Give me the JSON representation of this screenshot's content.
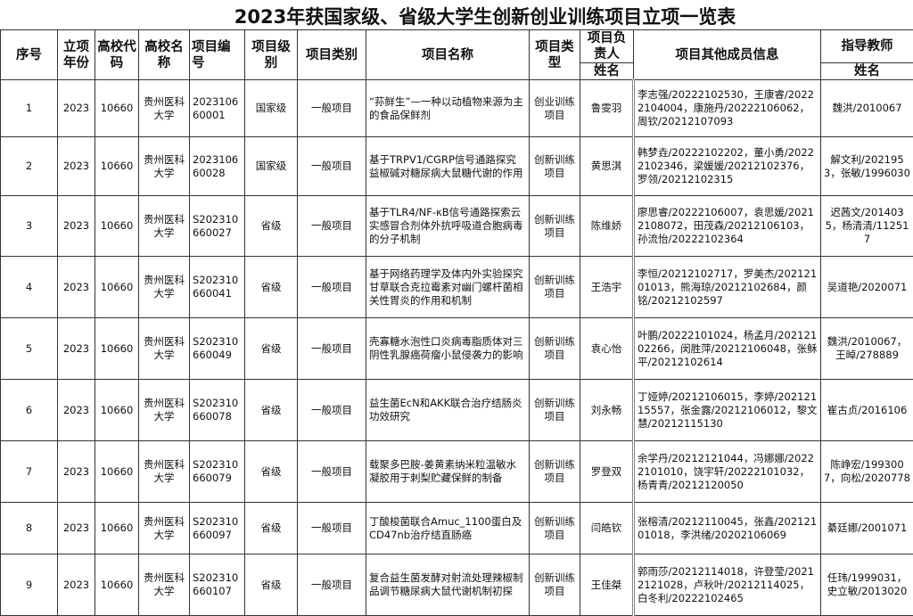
{
  "title": "2023年获国家级、省级大学生创新创业训练项目立项一览表",
  "headers": {
    "seq": "序号",
    "year": "立项年份",
    "school_code": "高校代码",
    "school_name": "高校名称",
    "project_no": "项目编号",
    "level": "项目级别",
    "category": "项目类别",
    "project_name": "项目名称",
    "type": "项目类型",
    "leader": "项目负责人",
    "leader_sub": "姓名",
    "members": "项目其他成员信息",
    "advisor": "指导教师",
    "advisor_sub": "姓名"
  },
  "rows": [
    {
      "seq": "1",
      "year": "2023",
      "code": "10660",
      "school": "贵州医科大学",
      "no": "202310660001",
      "level": "国家级",
      "category": "一般项目",
      "name": "“荪鲜生”—一种以动植物来源为主的食品保鲜剂",
      "type": "创业训练项目",
      "leader": "鲁雯羽",
      "members": "李志强/20222102530，王康睿/20222104004，康施丹/20222106062，周钦/20212107093",
      "advisor": "魏洪/2010067"
    },
    {
      "seq": "2",
      "year": "2023",
      "code": "10660",
      "school": "贵州医科大学",
      "no": "202310660028",
      "level": "国家级",
      "category": "一般项目",
      "name": "基于TRPV1/CGRP信号通路探究益椒碱对糖尿病大鼠糖代谢的作用",
      "type": "创新训练项目",
      "leader": "黄思淇",
      "members": "韩梦垚/20222102202，董小勇/20222102346，梁媛媛/20212102376，罗领/20212102315",
      "advisor": "解文利/2021953，张敏/1996030"
    },
    {
      "seq": "3",
      "year": "2023",
      "code": "10660",
      "school": "贵州医科大学",
      "no": "S202310660027",
      "level": "省级",
      "category": "一般项目",
      "name": "基于TLR4/NF-κB信号通路探索云实感冒合剂体外抗呼吸道合胞病毒的分子机制",
      "type": "创新训练项目",
      "leader": "陈维娇",
      "members": "廖思睿/20222106007，袁思媛/20212108072，田茂森/20212106103，孙流怡/20222102364",
      "advisor": "迟茜文/2014035，杨清清/112517"
    },
    {
      "seq": "4",
      "year": "2023",
      "code": "10660",
      "school": "贵州医科大学",
      "no": "S202310660041",
      "level": "省级",
      "category": "一般项目",
      "name": "基于网络药理学及体内外实验探究甘草联合克拉霉素对幽门螺杆菌相关性胃炎的作用和机制",
      "type": "创新训练项目",
      "leader": "王浩宇",
      "members": "李恒/20212102717，罗美杰/20212101013，熊海琼/20212102684，颜铭/20212102597",
      "advisor": "吴道艳/2020071"
    },
    {
      "seq": "5",
      "year": "2023",
      "code": "10660",
      "school": "贵州医科大学",
      "no": "S202310660049",
      "level": "省级",
      "category": "一般项目",
      "name": "壳寡糖水泡性口炎病毒脂质体对三阴性乳腺癌荷瘤小鼠侵袭力的影响",
      "type": "创新训练项目",
      "leader": "袁心怡",
      "members": "叶鹏/20222101024，杨孟月/20212102266，闵胜萍/20212106048，张稣平/20212102614",
      "advisor": "魏洪/2010067，王晫/278889"
    },
    {
      "seq": "6",
      "year": "2023",
      "code": "10660",
      "school": "贵州医科大学",
      "no": "S202310660078",
      "level": "省级",
      "category": "一般项目",
      "name": "益生菌EcN和AKK联合治疗结肠炎功效研究",
      "type": "创新训练项目",
      "leader": "刘永畅",
      "members": "丁娅婷/20212106015，李婷/20212115557，张金露/20212106012，黎文慧/20212115130",
      "advisor": "崔古贞/2016106"
    },
    {
      "seq": "7",
      "year": "2023",
      "code": "10660",
      "school": "贵州医科大学",
      "no": "S202310660079",
      "level": "省级",
      "category": "一般项目",
      "name": "载聚多巴胺-姜黄素纳米粒温敏水凝胶用于刺梨贮藏保鲜的制备",
      "type": "创新训练项目",
      "leader": "罗登双",
      "members": "余学丹/20212121044，冯娜娜/20222101010，饶宇轩/20222101032，杨青青/20212120050",
      "advisor": "陈峥宏/1993007，向松/2020778"
    },
    {
      "seq": "8",
      "year": "2023",
      "code": "10660",
      "school": "贵州医科大学",
      "no": "S202310660097",
      "level": "省级",
      "category": "一般项目",
      "name": "丁酸梭菌联合Amuc_1100蛋白及CD47nb治疗结直肠癌",
      "type": "创新训练项目",
      "leader": "闫皓钦",
      "members": "张榕清/20212110045，张鑫/20212101018，李洪绪/20202106069",
      "advisor": "綦廷娜/2001071"
    },
    {
      "seq": "9",
      "year": "2023",
      "code": "10660",
      "school": "贵州医科大学",
      "no": "S202310660107",
      "level": "省级",
      "category": "一般项目",
      "name": "复合益生菌发酵对射流处理辣椒制品调节糖尿病大鼠代谢机制初探",
      "type": "创新训练项目",
      "leader": "王佳桀",
      "members": "郭雨莎/20212114018，许登莹/20212121028，卢秋叶/20212114025，白冬利/20222102465",
      "advisor": "任玮/1999031，史立敏/2013020"
    }
  ]
}
